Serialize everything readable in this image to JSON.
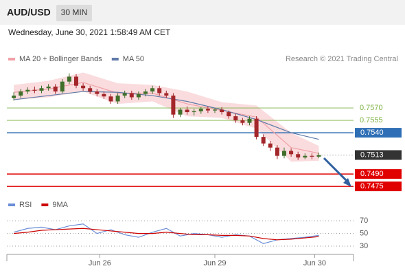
{
  "header": {
    "symbol": "AUD/USD",
    "interval": "30 MIN",
    "timestamp": "Wednesday, June 30, 2021 1:58:49 AM CET"
  },
  "chart_data": [
    {
      "type": "candlestick",
      "source": "Research © 2021 Trading Central",
      "xlim": [
        -1,
        49
      ],
      "ylim": [
        0.74634,
        0.76384
      ],
      "up_color": "#3f6f2a",
      "down_color": "#a3262a",
      "open": [
        0.7582,
        0.7585,
        0.759,
        0.7592,
        0.7591,
        0.7594,
        0.7596,
        0.759,
        0.7602,
        0.7608,
        0.7597,
        0.7594,
        0.759,
        0.7587,
        0.7584,
        0.7578,
        0.7585,
        0.7588,
        0.7583,
        0.7587,
        0.759,
        0.7594,
        0.7588,
        0.7585,
        0.7562,
        0.7568,
        0.7565,
        0.7566,
        0.7569,
        0.7567,
        0.7568,
        0.7565,
        0.756,
        0.7555,
        0.7552,
        0.7557,
        0.7535,
        0.7527,
        0.7522,
        0.7512,
        0.7518,
        0.7514,
        0.751,
        0.7512,
        0.7511
      ],
      "high": [
        0.7589,
        0.7593,
        0.7595,
        0.7596,
        0.7597,
        0.7599,
        0.7599,
        0.7605,
        0.7612,
        0.7611,
        0.76,
        0.7597,
        0.7593,
        0.759,
        0.7587,
        0.7588,
        0.7591,
        0.7591,
        0.759,
        0.7593,
        0.7597,
        0.7597,
        0.7591,
        0.7588,
        0.757,
        0.7572,
        0.7569,
        0.7571,
        0.7572,
        0.757,
        0.7571,
        0.7567,
        0.7563,
        0.7558,
        0.756,
        0.756,
        0.7538,
        0.753,
        0.7525,
        0.7522,
        0.7521,
        0.7517,
        0.7515,
        0.7515,
        0.7516
      ],
      "low": [
        0.7579,
        0.7582,
        0.7587,
        0.7588,
        0.7588,
        0.7591,
        0.7587,
        0.7588,
        0.7599,
        0.7594,
        0.7591,
        0.7587,
        0.7584,
        0.7581,
        0.7575,
        0.7575,
        0.7582,
        0.758,
        0.758,
        0.7584,
        0.7587,
        0.7585,
        0.7582,
        0.7558,
        0.7559,
        0.7562,
        0.7561,
        0.7563,
        0.7564,
        0.7564,
        0.7562,
        0.7557,
        0.7552,
        0.7549,
        0.7549,
        0.7532,
        0.7524,
        0.7518,
        0.7508,
        0.7509,
        0.7511,
        0.7507,
        0.7508,
        0.7508,
        0.7509
      ],
      "close": [
        0.7585,
        0.759,
        0.7592,
        0.7591,
        0.7594,
        0.7596,
        0.759,
        0.7602,
        0.7608,
        0.7597,
        0.7594,
        0.759,
        0.7587,
        0.7584,
        0.7578,
        0.7585,
        0.7588,
        0.7583,
        0.7587,
        0.759,
        0.7594,
        0.7588,
        0.7585,
        0.7562,
        0.7568,
        0.7565,
        0.7566,
        0.7569,
        0.7567,
        0.7568,
        0.7565,
        0.756,
        0.7555,
        0.7552,
        0.7557,
        0.7535,
        0.7527,
        0.7522,
        0.7512,
        0.7518,
        0.7514,
        0.751,
        0.7512,
        0.7511,
        0.7513
      ],
      "band": {
        "color": "#f9d3d6",
        "x": [
          0,
          5,
          10,
          15,
          20,
          25,
          30,
          35,
          40,
          44
        ],
        "upper": [
          0.7598,
          0.7603,
          0.7613,
          0.76,
          0.7598,
          0.759,
          0.7577,
          0.7573,
          0.754,
          0.7524
        ],
        "lower": [
          0.758,
          0.7583,
          0.759,
          0.7575,
          0.7578,
          0.756,
          0.7558,
          0.7545,
          0.7505,
          0.7506
        ]
      },
      "series": [
        {
          "name": "MA 20 + Bollinger Bands",
          "color": "#f0a0a6",
          "x": [
            0,
            5,
            10,
            15,
            20,
            25,
            30,
            35,
            40,
            44
          ],
          "values": [
            0.7589,
            0.7593,
            0.7601,
            0.7588,
            0.7588,
            0.7575,
            0.7567,
            0.7559,
            0.7522,
            0.7515
          ]
        },
        {
          "name": "MA 50",
          "color": "#5f7aa8",
          "x": [
            0,
            5,
            10,
            15,
            20,
            25,
            30,
            35,
            40,
            44
          ],
          "values": [
            0.758,
            0.7585,
            0.759,
            0.7589,
            0.7585,
            0.7578,
            0.7568,
            0.7556,
            0.754,
            0.7532
          ]
        }
      ],
      "levels": [
        {
          "value": 0.757,
          "label": "0.7570",
          "color": "#7cb342",
          "style": "text"
        },
        {
          "value": 0.7555,
          "label": "0.7555",
          "color": "#7cb342",
          "style": "text"
        },
        {
          "value": 0.754,
          "label": "0.7540",
          "color": "#2f6fb5",
          "style": "box"
        },
        {
          "value": 0.7513,
          "label": "0.7513",
          "color": "#333333",
          "style": "current"
        },
        {
          "value": 0.749,
          "label": "0.7490",
          "color": "#e00000",
          "style": "box"
        },
        {
          "value": 0.7475,
          "label": "0.7475",
          "color": "#e00000",
          "style": "box"
        }
      ]
    },
    {
      "type": "line",
      "xlim": [
        -1,
        49
      ],
      "ylim": [
        17,
        93
      ],
      "yticks": [
        70,
        50,
        30
      ],
      "xticks": [
        {
          "value": 12.4,
          "label": "Jun 26"
        },
        {
          "value": 29,
          "label": "Jun 29"
        },
        {
          "value": 43.4,
          "label": "Jun 30"
        }
      ],
      "series": [
        {
          "name": "RSI",
          "color": "#6b8dd6",
          "x": [
            0,
            2,
            4,
            6,
            8,
            10,
            12,
            14,
            16,
            18,
            20,
            22,
            24,
            26,
            28,
            30,
            32,
            34,
            36,
            38,
            40,
            42,
            44
          ],
          "values": [
            52,
            58,
            60,
            56,
            62,
            65,
            50,
            56,
            48,
            44,
            52,
            58,
            46,
            50,
            48,
            44,
            48,
            46,
            34,
            40,
            42,
            44,
            47
          ]
        },
        {
          "name": "9MA",
          "color": "#cc0000",
          "x": [
            0,
            2,
            4,
            6,
            8,
            10,
            12,
            14,
            16,
            18,
            20,
            22,
            24,
            26,
            28,
            30,
            32,
            34,
            36,
            38,
            40,
            42,
            44
          ],
          "values": [
            50,
            52,
            55,
            56,
            57,
            58,
            56,
            54,
            52,
            50,
            50,
            52,
            50,
            48,
            48,
            47,
            47,
            46,
            42,
            40,
            41,
            43,
            45
          ]
        }
      ]
    }
  ]
}
